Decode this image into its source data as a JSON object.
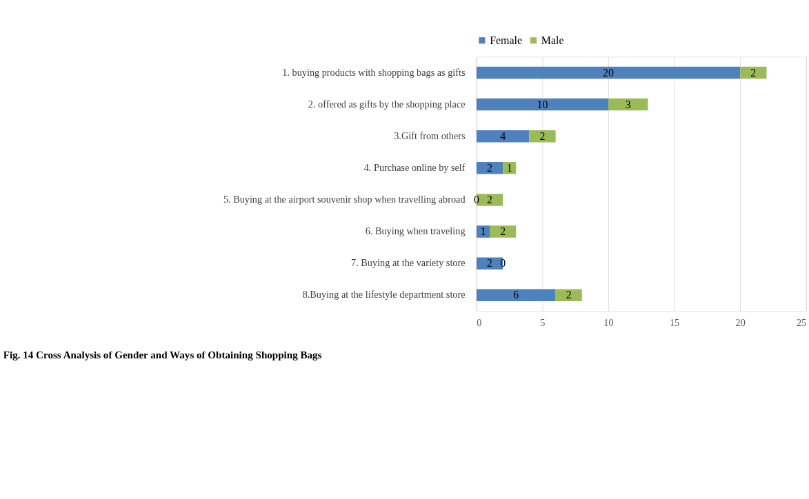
{
  "chart_data": {
    "type": "bar",
    "orientation": "horizontal",
    "stacked": true,
    "categories": [
      "1. buying products with shopping bags as gifts",
      "2. offered as gifts by the shopping place",
      "3.Gift from others",
      "4. Purchase online by self",
      "5. Buying at the airport souvenir shop when travelling abroad",
      "6. Buying when traveling",
      "7. Buying at the variety store",
      "8.Buying at the lifestyle department store"
    ],
    "series": [
      {
        "name": "Female",
        "color": "#4f81bd",
        "values": [
          20,
          10,
          4,
          2,
          0,
          1,
          2,
          6
        ]
      },
      {
        "name": "Male",
        "color": "#9bbb59",
        "values": [
          2,
          3,
          2,
          1,
          2,
          2,
          0,
          2
        ]
      }
    ],
    "xlim": [
      0,
      25
    ],
    "xticks": [
      0,
      5,
      10,
      15,
      20,
      25
    ],
    "grid": "x",
    "legend": "top",
    "data_labels": true,
    "annotations": [
      "Fig. 14 Cross Analysis of Gender and Ways of Obtaining Shopping Bags"
    ]
  }
}
